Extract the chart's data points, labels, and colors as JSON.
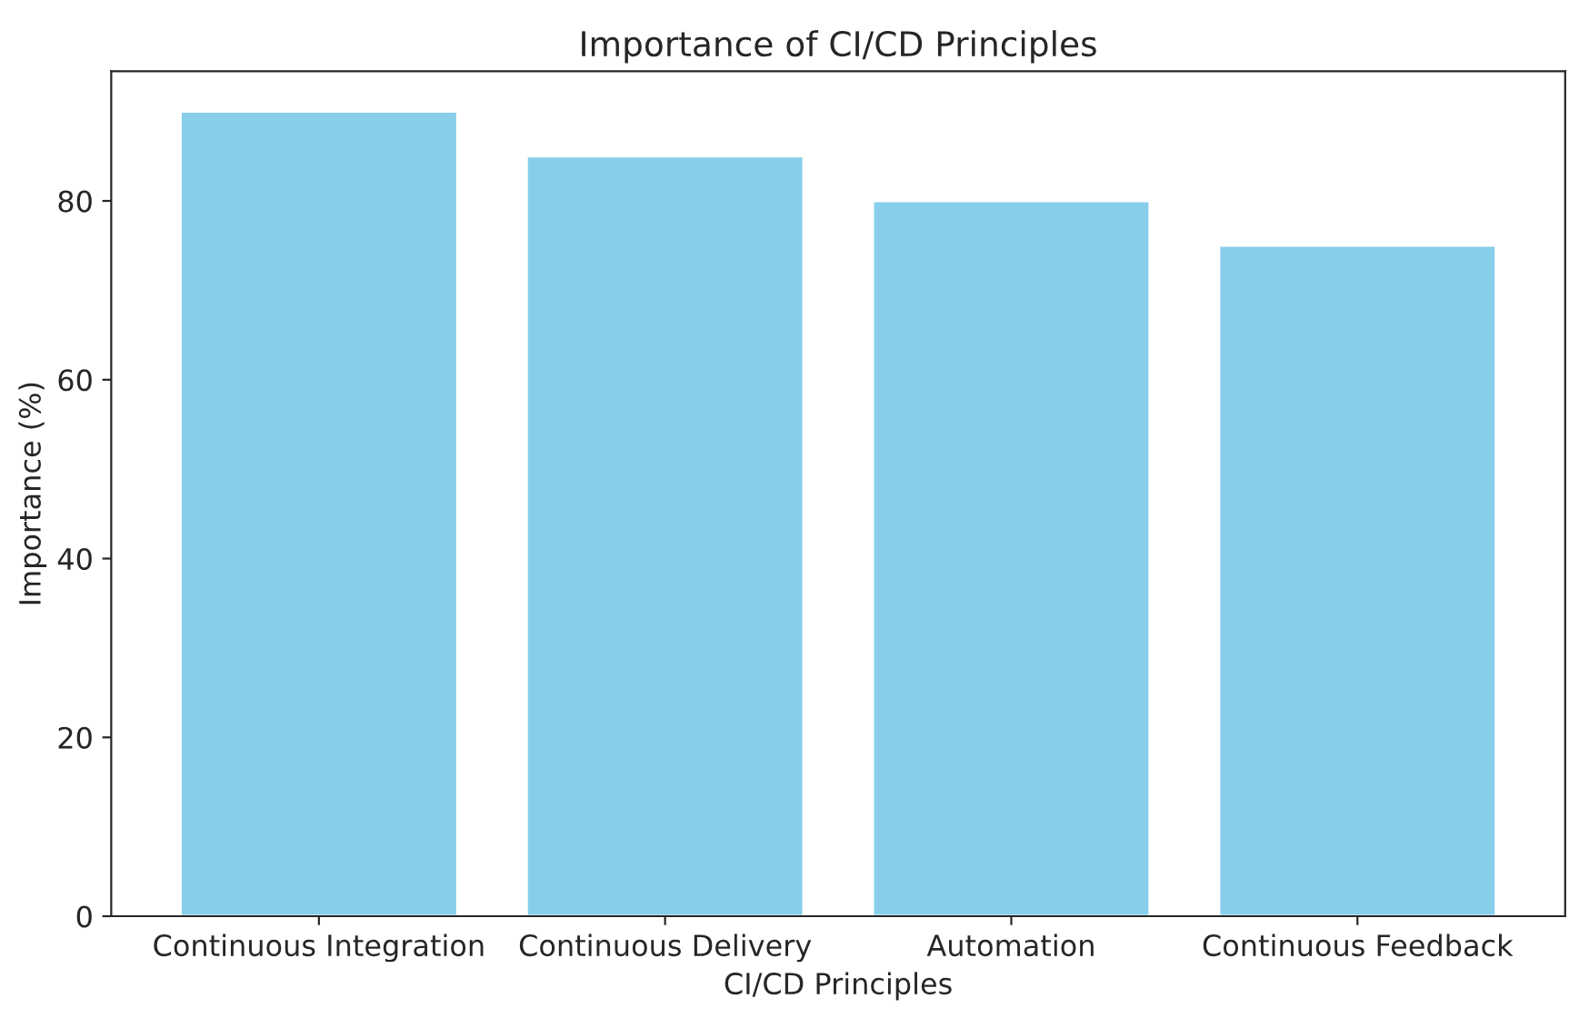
{
  "chart_data": {
    "type": "bar",
    "title": "Importance of CI/CD Principles",
    "xlabel": "CI/CD Principles",
    "ylabel": "Importance (%)",
    "categories": [
      "Continuous Integration",
      "Continuous Delivery",
      "Automation",
      "Continuous Feedback"
    ],
    "values": [
      90,
      85,
      80,
      75
    ],
    "color": "#87ceeb",
    "ylim": [
      0,
      94.5
    ],
    "yticks": [
      0,
      20,
      40,
      60,
      80
    ],
    "grid": false
  }
}
